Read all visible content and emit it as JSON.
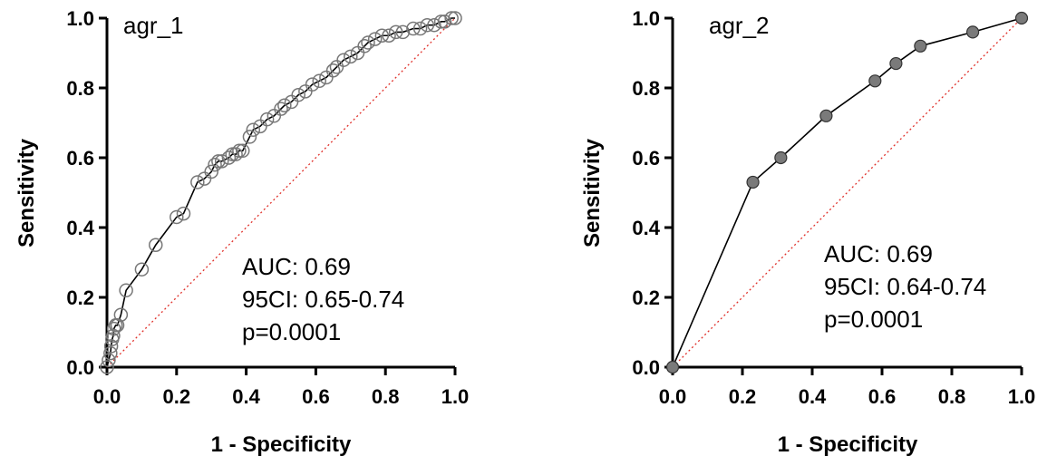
{
  "chart_data": [
    {
      "type": "line",
      "title": "agr_1",
      "xlabel": "1 - Specificity",
      "ylabel": "Sensitivity",
      "xlim": [
        0,
        1
      ],
      "ylim": [
        0,
        1
      ],
      "x_ticks": [
        "0.0",
        "0.2",
        "0.4",
        "0.6",
        "0.8",
        "1.0"
      ],
      "y_ticks": [
        "0.0",
        "0.2",
        "0.4",
        "0.6",
        "0.8",
        "1.0"
      ],
      "annotations": [
        "AUC: 0.69",
        "95CI: 0.65-0.74",
        "p=0.0001"
      ],
      "marker": "open-circle",
      "reference_line": {
        "style": "dotted",
        "color": "#e0302a",
        "from": [
          0,
          0
        ],
        "to": [
          1,
          1
        ]
      },
      "series": [
        {
          "x": [
            0.0,
            0.005,
            0.01,
            0.012,
            0.015,
            0.018,
            0.02,
            0.025,
            0.03,
            0.04,
            0.055,
            0.1,
            0.14,
            0.2,
            0.22,
            0.26,
            0.28,
            0.3,
            0.31,
            0.32,
            0.33,
            0.35,
            0.36,
            0.37,
            0.38,
            0.39,
            0.41,
            0.42,
            0.44,
            0.46,
            0.48,
            0.5,
            0.51,
            0.53,
            0.55,
            0.57,
            0.59,
            0.61,
            0.63,
            0.65,
            0.66,
            0.68,
            0.7,
            0.72,
            0.74,
            0.75,
            0.77,
            0.79,
            0.81,
            0.83,
            0.85,
            0.88,
            0.9,
            0.92,
            0.94,
            0.96,
            0.97,
            0.99,
            1.0
          ],
          "y": [
            0.0,
            0.02,
            0.04,
            0.06,
            0.08,
            0.09,
            0.11,
            0.12,
            0.12,
            0.15,
            0.22,
            0.28,
            0.35,
            0.43,
            0.44,
            0.53,
            0.54,
            0.56,
            0.58,
            0.59,
            0.59,
            0.6,
            0.61,
            0.61,
            0.62,
            0.62,
            0.66,
            0.68,
            0.69,
            0.71,
            0.72,
            0.74,
            0.75,
            0.76,
            0.78,
            0.79,
            0.81,
            0.82,
            0.83,
            0.85,
            0.86,
            0.88,
            0.89,
            0.9,
            0.92,
            0.93,
            0.94,
            0.95,
            0.95,
            0.96,
            0.96,
            0.97,
            0.97,
            0.98,
            0.98,
            0.99,
            0.99,
            1.0,
            1.0
          ]
        }
      ]
    },
    {
      "type": "line",
      "title": "agr_2",
      "xlabel": "1 - Specificity",
      "ylabel": "Sensitivity",
      "xlim": [
        0,
        1
      ],
      "ylim": [
        0,
        1
      ],
      "x_ticks": [
        "0.0",
        "0.2",
        "0.4",
        "0.6",
        "0.8",
        "1.0"
      ],
      "y_ticks": [
        "0.0",
        "0.2",
        "0.4",
        "0.6",
        "0.8",
        "1.0"
      ],
      "annotations": [
        "AUC: 0.69",
        "95CI: 0.64-0.74",
        "p=0.0001"
      ],
      "marker": "filled-circle",
      "reference_line": {
        "style": "dotted",
        "color": "#e0302a",
        "from": [
          0,
          0
        ],
        "to": [
          1,
          1
        ]
      },
      "series": [
        {
          "x": [
            0.0,
            0.23,
            0.31,
            0.44,
            0.58,
            0.64,
            0.71,
            0.86,
            1.0
          ],
          "y": [
            0.0,
            0.53,
            0.6,
            0.72,
            0.82,
            0.87,
            0.92,
            0.96,
            1.0
          ]
        }
      ]
    }
  ]
}
